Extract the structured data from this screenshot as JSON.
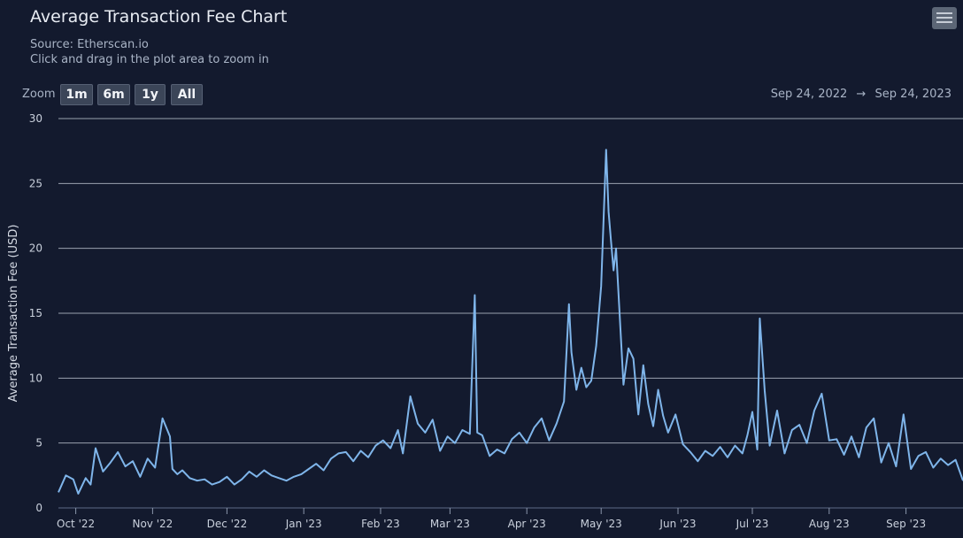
{
  "header": {
    "title": "Average Transaction Fee Chart",
    "source": "Source: Etherscan.io",
    "hint": "Click and drag in the plot area to zoom in",
    "menu_icon": "hamburger-menu-icon"
  },
  "zoom": {
    "label": "Zoom",
    "buttons": [
      "1m",
      "6m",
      "1y",
      "All"
    ]
  },
  "range": {
    "from": "Sep 24, 2022",
    "arrow": "→",
    "to": "Sep 24, 2023"
  },
  "colors": {
    "background": "#131a2e",
    "line": "#7fb5ea",
    "grid": "#c8cedb"
  },
  "chart_data": {
    "type": "line",
    "title": "Average Transaction Fee Chart",
    "ylabel": "Average Transaction Fee (USD)",
    "xlabel": "",
    "ylim": [
      0,
      30
    ],
    "yticks": [
      0,
      5,
      10,
      15,
      20,
      25,
      30
    ],
    "xlim": [
      "2022-09-24",
      "2023-09-24"
    ],
    "xticks": [
      {
        "label": "Oct '22",
        "date": "2022-10-01"
      },
      {
        "label": "Nov '22",
        "date": "2022-11-01"
      },
      {
        "label": "Dec '22",
        "date": "2022-12-01"
      },
      {
        "label": "Jan '23",
        "date": "2023-01-01"
      },
      {
        "label": "Feb '23",
        "date": "2023-02-01"
      },
      {
        "label": "Mar '23",
        "date": "2023-03-01"
      },
      {
        "label": "Apr '23",
        "date": "2023-04-01"
      },
      {
        "label": "May '23",
        "date": "2023-05-01"
      },
      {
        "label": "Jun '23",
        "date": "2023-06-01"
      },
      {
        "label": "Jul '23",
        "date": "2023-07-01"
      },
      {
        "label": "Aug '23",
        "date": "2023-08-01"
      },
      {
        "label": "Sep '23",
        "date": "2023-09-01"
      }
    ],
    "grid": true,
    "legend": "none",
    "series": [
      {
        "x": [
          "2022-09-24",
          "2022-09-27",
          "2022-09-30",
          "2022-10-02",
          "2022-10-05",
          "2022-10-07",
          "2022-10-09",
          "2022-10-12",
          "2022-10-15",
          "2022-10-18",
          "2022-10-21",
          "2022-10-24",
          "2022-10-27",
          "2022-10-30",
          "2022-11-02",
          "2022-11-05",
          "2022-11-08",
          "2022-11-09",
          "2022-11-11",
          "2022-11-13",
          "2022-11-16",
          "2022-11-19",
          "2022-11-22",
          "2022-11-25",
          "2022-11-28",
          "2022-12-01",
          "2022-12-04",
          "2022-12-07",
          "2022-12-10",
          "2022-12-13",
          "2022-12-16",
          "2022-12-19",
          "2022-12-22",
          "2022-12-25",
          "2022-12-28",
          "2022-12-31",
          "2023-01-03",
          "2023-01-06",
          "2023-01-09",
          "2023-01-12",
          "2023-01-15",
          "2023-01-18",
          "2023-01-21",
          "2023-01-24",
          "2023-01-27",
          "2023-01-30",
          "2023-02-02",
          "2023-02-05",
          "2023-02-08",
          "2023-02-10",
          "2023-02-13",
          "2023-02-16",
          "2023-02-19",
          "2023-02-22",
          "2023-02-25",
          "2023-02-28",
          "2023-03-03",
          "2023-03-06",
          "2023-03-09",
          "2023-03-11",
          "2023-03-12",
          "2023-03-14",
          "2023-03-17",
          "2023-03-20",
          "2023-03-23",
          "2023-03-26",
          "2023-03-29",
          "2023-04-01",
          "2023-04-04",
          "2023-04-07",
          "2023-04-10",
          "2023-04-13",
          "2023-04-16",
          "2023-04-18",
          "2023-04-19",
          "2023-04-21",
          "2023-04-23",
          "2023-04-25",
          "2023-04-27",
          "2023-04-29",
          "2023-05-01",
          "2023-05-03",
          "2023-05-04",
          "2023-05-05",
          "2023-05-06",
          "2023-05-07",
          "2023-05-09",
          "2023-05-10",
          "2023-05-12",
          "2023-05-14",
          "2023-05-16",
          "2023-05-18",
          "2023-05-20",
          "2023-05-22",
          "2023-05-24",
          "2023-05-26",
          "2023-05-28",
          "2023-05-31",
          "2023-06-03",
          "2023-06-06",
          "2023-06-09",
          "2023-06-12",
          "2023-06-15",
          "2023-06-18",
          "2023-06-21",
          "2023-06-24",
          "2023-06-27",
          "2023-06-29",
          "2023-07-01",
          "2023-07-03",
          "2023-07-04",
          "2023-07-06",
          "2023-07-08",
          "2023-07-11",
          "2023-07-14",
          "2023-07-17",
          "2023-07-20",
          "2023-07-23",
          "2023-07-26",
          "2023-07-29",
          "2023-08-01",
          "2023-08-04",
          "2023-08-07",
          "2023-08-10",
          "2023-08-13",
          "2023-08-16",
          "2023-08-19",
          "2023-08-22",
          "2023-08-25",
          "2023-08-28",
          "2023-08-31",
          "2023-09-03",
          "2023-09-06",
          "2023-09-09",
          "2023-09-12",
          "2023-09-15",
          "2023-09-18",
          "2023-09-21",
          "2023-09-24"
        ],
        "values": [
          1.2,
          2.5,
          2.2,
          1.1,
          2.3,
          1.8,
          4.6,
          2.8,
          3.5,
          4.3,
          3.2,
          3.6,
          2.4,
          3.8,
          3.1,
          6.9,
          5.5,
          3.0,
          2.6,
          2.9,
          2.3,
          2.1,
          2.2,
          1.8,
          2.0,
          2.4,
          1.8,
          2.2,
          2.8,
          2.4,
          2.9,
          2.5,
          2.3,
          2.1,
          2.4,
          2.6,
          3.0,
          3.4,
          2.9,
          3.8,
          4.2,
          4.3,
          3.6,
          4.4,
          3.9,
          4.8,
          5.2,
          4.6,
          6.0,
          4.2,
          8.6,
          6.5,
          5.8,
          6.8,
          4.4,
          5.5,
          5.0,
          6.0,
          5.7,
          16.4,
          5.8,
          5.6,
          4.0,
          4.5,
          4.2,
          5.3,
          5.8,
          5.0,
          6.2,
          6.9,
          5.2,
          6.5,
          8.2,
          15.7,
          12.0,
          9.1,
          10.8,
          9.3,
          9.8,
          12.5,
          17.1,
          27.6,
          22.8,
          20.5,
          18.3,
          20.0,
          13.0,
          9.5,
          12.3,
          11.5,
          7.2,
          11.0,
          8.0,
          6.3,
          9.1,
          7.1,
          5.8,
          7.2,
          4.9,
          4.3,
          3.6,
          4.4,
          4.0,
          4.7,
          3.9,
          4.8,
          4.2,
          5.6,
          7.4,
          4.5,
          14.6,
          9.0,
          4.8,
          7.5,
          4.2,
          6.0,
          6.4,
          5.0,
          7.5,
          8.8,
          5.2,
          5.3,
          4.1,
          5.5,
          3.9,
          6.2,
          6.9,
          3.5,
          5.0,
          3.2,
          7.2,
          3.0,
          4.0,
          4.3,
          3.1,
          3.8,
          3.3,
          3.7,
          2.1
        ]
      }
    ]
  }
}
